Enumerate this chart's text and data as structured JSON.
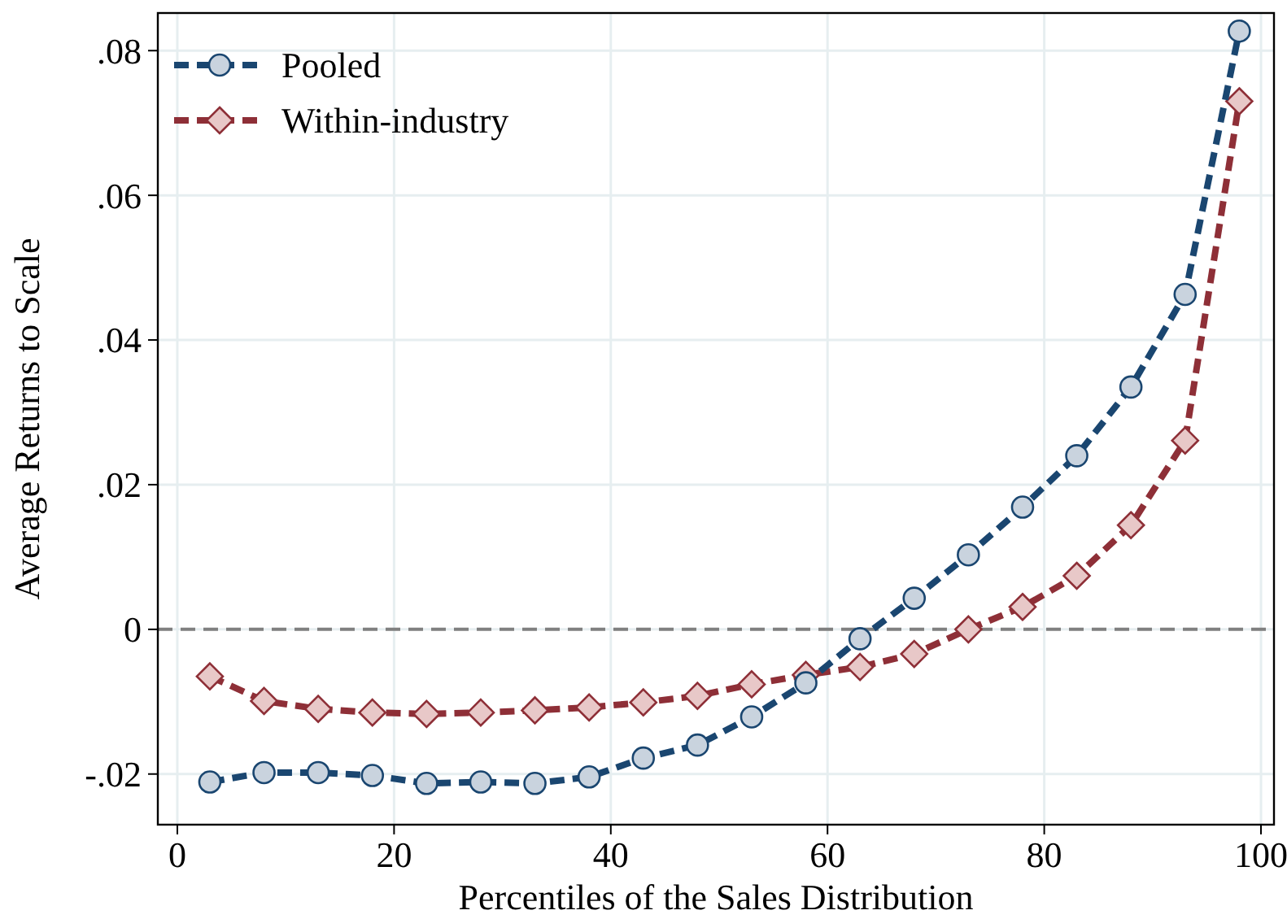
{
  "chart_data": {
    "type": "line",
    "xlabel": "Percentiles of the Sales Distribution",
    "ylabel": "Average Returns to Scale",
    "x": [
      3,
      8,
      13,
      18,
      23,
      28,
      33,
      38,
      43,
      48,
      53,
      58,
      63,
      68,
      73,
      78,
      83,
      88,
      93,
      98
    ],
    "xlim": [
      -1.8,
      101.2
    ],
    "xticks": [
      0,
      20,
      40,
      60,
      80,
      100
    ],
    "ylim": [
      -0.027,
      0.0852
    ],
    "yticks": [
      {
        "value": -0.02,
        "label": "-.02"
      },
      {
        "value": 0,
        "label": "0"
      },
      {
        "value": 0.02,
        "label": ".02"
      },
      {
        "value": 0.04,
        "label": ".04"
      },
      {
        "value": 0.06,
        "label": ".06"
      },
      {
        "value": 0.08,
        "label": ".08"
      }
    ],
    "grid": true,
    "legend": "top left",
    "line_style": "dashed",
    "ref_lines": [
      {
        "axis": "y",
        "value": 0,
        "color": "#808080",
        "line_style": "dashed"
      }
    ],
    "series": [
      {
        "name": "Pooled",
        "color": "#1a4670",
        "marker": "circle",
        "values": [
          -0.0211,
          -0.0198,
          -0.0198,
          -0.0202,
          -0.0213,
          -0.0211,
          -0.0213,
          -0.0204,
          -0.0178,
          -0.016,
          -0.0121,
          -0.0074,
          -0.0013,
          0.0043,
          0.0103,
          0.0169,
          0.024,
          0.0335,
          0.0463,
          0.0827
        ]
      },
      {
        "name": "Within-industry",
        "color": "#8e2f37",
        "marker": "diamond",
        "values": [
          -0.0065,
          -0.0099,
          -0.011,
          -0.0115,
          -0.0117,
          -0.0115,
          -0.0112,
          -0.0108,
          -0.0101,
          -0.0092,
          -0.0076,
          -0.0063,
          -0.0052,
          -0.0034,
          0,
          0.0031,
          0.0074,
          0.0144,
          0.0261,
          0.073
        ]
      }
    ]
  }
}
